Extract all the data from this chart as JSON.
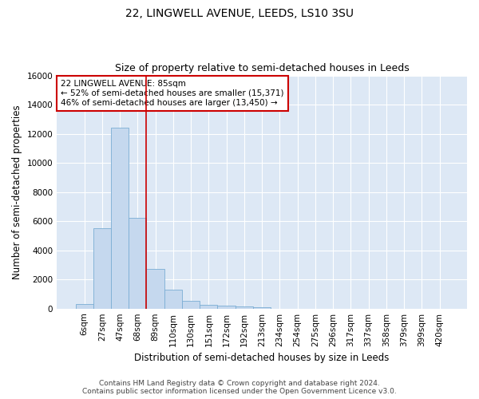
{
  "title": "22, LINGWELL AVENUE, LEEDS, LS10 3SU",
  "subtitle": "Size of property relative to semi-detached houses in Leeds",
  "xlabel": "Distribution of semi-detached houses by size in Leeds",
  "ylabel": "Number of semi-detached properties",
  "categories": [
    "6sqm",
    "27sqm",
    "47sqm",
    "68sqm",
    "89sqm",
    "110sqm",
    "130sqm",
    "151sqm",
    "172sqm",
    "192sqm",
    "213sqm",
    "234sqm",
    "254sqm",
    "275sqm",
    "296sqm",
    "317sqm",
    "337sqm",
    "358sqm",
    "379sqm",
    "399sqm",
    "420sqm"
  ],
  "bar_heights": [
    300,
    5500,
    12400,
    6200,
    2700,
    1300,
    550,
    280,
    200,
    130,
    100,
    0,
    0,
    0,
    0,
    0,
    0,
    0,
    0,
    0,
    0
  ],
  "bar_color": "#c5d8ee",
  "bar_edge_color": "#7aadd4",
  "property_line_x": 3.5,
  "annotation_line1": "22 LINGWELL AVENUE: 85sqm",
  "annotation_line2": "← 52% of semi-detached houses are smaller (15,371)",
  "annotation_line3": "46% of semi-detached houses are larger (13,450) →",
  "annotation_box_color": "#ffffff",
  "annotation_border_color": "#cc0000",
  "vline_color": "#cc0000",
  "ylim": [
    0,
    16000
  ],
  "yticks": [
    0,
    2000,
    4000,
    6000,
    8000,
    10000,
    12000,
    14000,
    16000
  ],
  "background_color": "#dde8f5",
  "grid_color": "#ffffff",
  "footer_line1": "Contains HM Land Registry data © Crown copyright and database right 2024.",
  "footer_line2": "Contains public sector information licensed under the Open Government Licence v3.0.",
  "title_fontsize": 10,
  "subtitle_fontsize": 9,
  "axis_label_fontsize": 8.5,
  "tick_fontsize": 7.5,
  "annotation_fontsize": 7.5,
  "footer_fontsize": 6.5
}
